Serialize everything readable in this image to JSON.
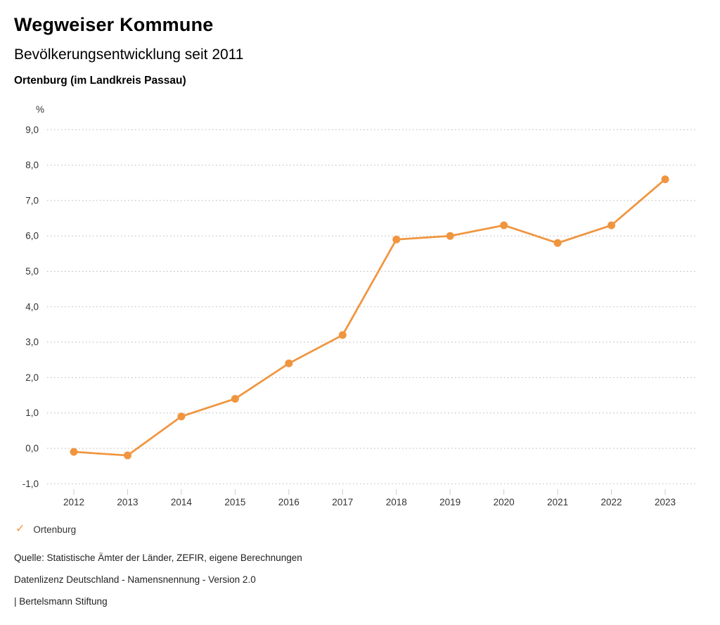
{
  "header": {
    "title": "Wegweiser Kommune",
    "subtitle": "Bevölkerungsentwicklung seit 2011",
    "region": "Ortenburg (im Landkreis Passau)"
  },
  "chart_data": {
    "type": "line",
    "title": "Bevölkerungsentwicklung seit 2011",
    "subtitle": "Ortenburg (im Landkreis Passau)",
    "unit_label": "%",
    "categories": [
      "2012",
      "2013",
      "2014",
      "2015",
      "2016",
      "2017",
      "2018",
      "2019",
      "2020",
      "2021",
      "2022",
      "2023"
    ],
    "series": [
      {
        "name": "Ortenburg",
        "values": [
          -0.1,
          -0.2,
          0.9,
          1.4,
          2.4,
          3.2,
          5.9,
          6.0,
          6.3,
          5.8,
          6.3,
          7.6
        ]
      }
    ],
    "xlabel": "",
    "ylabel": "%",
    "ylim": [
      -1.0,
      9.0
    ],
    "y_ticks": [
      {
        "value": 9,
        "label": "9,0"
      },
      {
        "value": 8,
        "label": "8,0"
      },
      {
        "value": 7,
        "label": "7,0"
      },
      {
        "value": 6,
        "label": "6,0"
      },
      {
        "value": 5,
        "label": "5,0"
      },
      {
        "value": 4,
        "label": "4,0"
      },
      {
        "value": 3,
        "label": "3,0"
      },
      {
        "value": 2,
        "label": "2,0"
      },
      {
        "value": 1,
        "label": "1,0"
      },
      {
        "value": 0,
        "label": "0,0"
      },
      {
        "value": -1,
        "label": "-1,0"
      }
    ],
    "grid": "horizontal-dotted",
    "legend_position": "bottom-left",
    "marker": "circle"
  },
  "legend": {
    "check_icon": "✓",
    "label": "Ortenburg"
  },
  "footer": {
    "source": "Quelle: Statistische Ämter der Länder, ZEFIR, eigene Berechnungen",
    "license": "Datenlizenz Deutschland - Namensnennung - Version 2.0",
    "attribution": "| Bertelsmann Stiftung"
  },
  "colors": {
    "accent": "#F0953F",
    "grid": "#b5b5b5",
    "tick_mark": "#cccccc",
    "axis_text": "#333333",
    "title_text": "#000000"
  }
}
